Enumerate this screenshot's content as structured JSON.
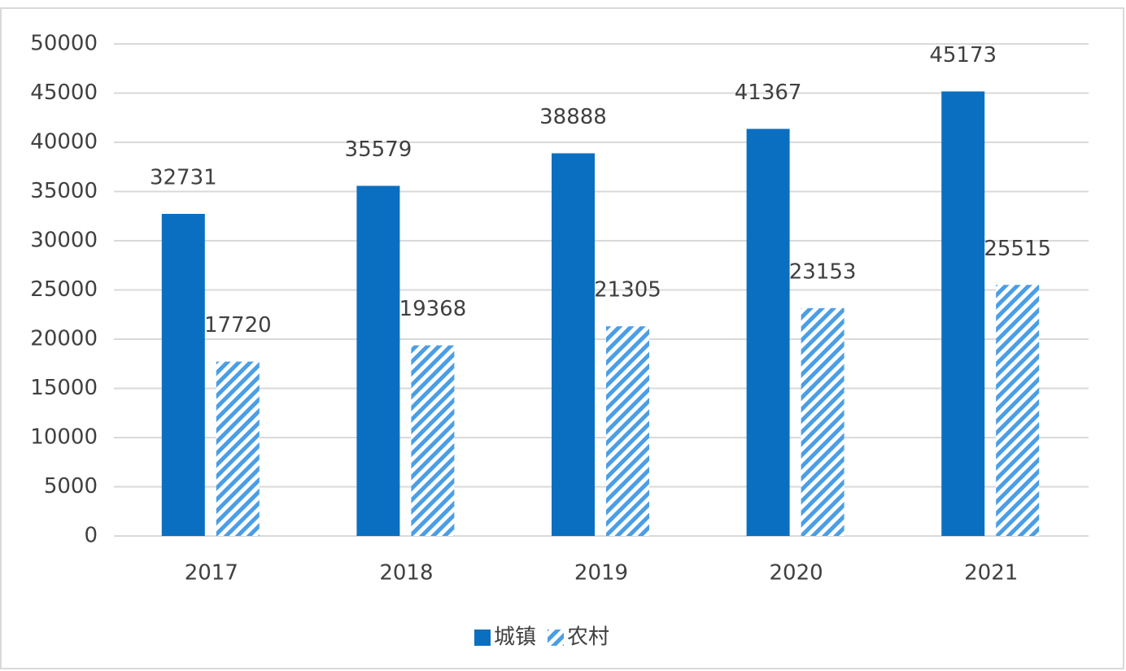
{
  "chart_data": {
    "type": "bar",
    "categories": [
      "2017",
      "2018",
      "2019",
      "2020",
      "2021"
    ],
    "series": [
      {
        "name": "城镇",
        "color": "#0b6fc1",
        "values": [
          32731,
          35579,
          38888,
          41367,
          45173
        ]
      },
      {
        "name": "农村",
        "color": "#4a9ee6",
        "hatch": true,
        "values": [
          17720,
          19368,
          21305,
          23153,
          25515
        ]
      }
    ],
    "ylim": [
      0,
      50000
    ],
    "yticks": [
      0,
      5000,
      10000,
      15000,
      20000,
      25000,
      30000,
      35000,
      40000,
      45000,
      50000
    ],
    "grid": true,
    "legend": "bottom"
  }
}
